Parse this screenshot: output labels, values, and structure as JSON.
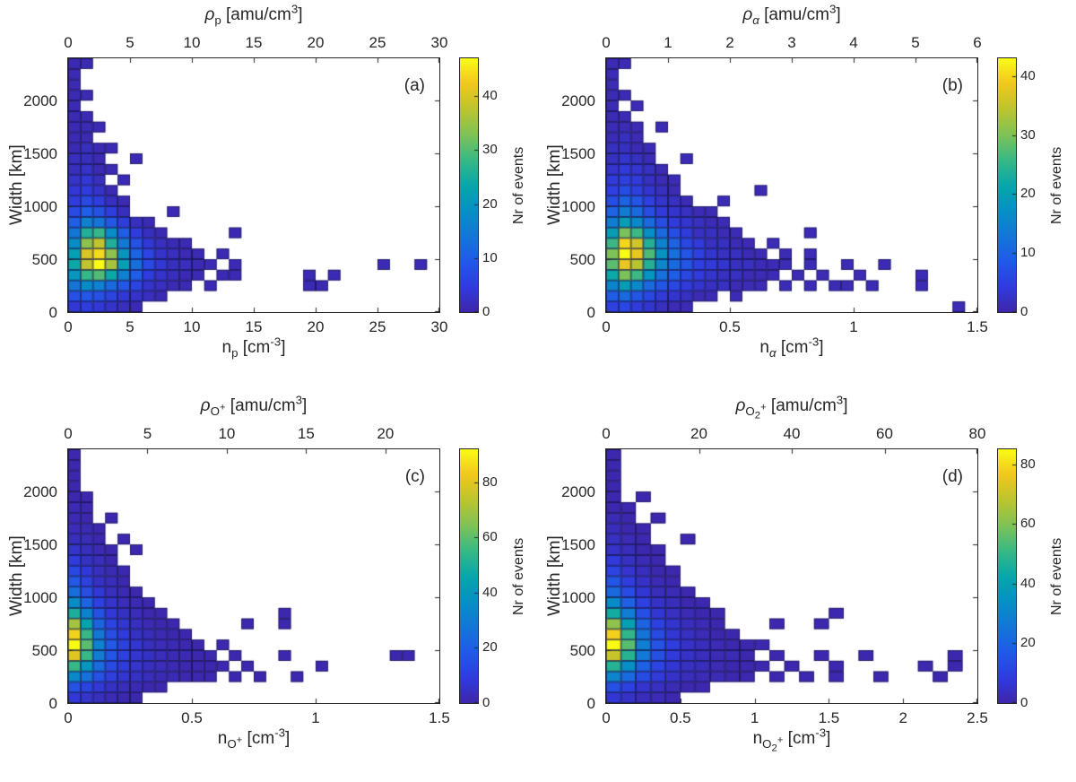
{
  "colormap": {
    "name": "parula",
    "stops": [
      [
        0.0,
        [
          62,
          38,
          168
        ]
      ],
      [
        0.1,
        [
          48,
          59,
          222
        ]
      ],
      [
        0.2,
        [
          33,
          90,
          232
        ]
      ],
      [
        0.3,
        [
          20,
          118,
          215
        ]
      ],
      [
        0.4,
        [
          6,
          144,
          197
        ]
      ],
      [
        0.5,
        [
          7,
          166,
          171
        ]
      ],
      [
        0.6,
        [
          56,
          184,
          133
        ]
      ],
      [
        0.7,
        [
          126,
          194,
          88
        ]
      ],
      [
        0.8,
        [
          188,
          196,
          48
        ]
      ],
      [
        0.9,
        [
          241,
          199,
          28
        ]
      ],
      [
        1.0,
        [
          249,
          251,
          20
        ]
      ]
    ]
  },
  "chart_data": [
    {
      "type": "heatmap",
      "letter": "(a)",
      "top_label_html": "<i>ρ</i><sub>p</sub> [amu/cm<sup>3</sup>]",
      "x_label_html": "n<sub>p</sub> [cm<sup>-3</sup>]",
      "y_label": "Width [km]",
      "colorbar_label": "Nr of events",
      "x_min": 0,
      "x_max": 30,
      "x_bin": 1,
      "x_ticks": [
        0,
        5,
        10,
        15,
        20,
        25,
        30
      ],
      "top_min": 0,
      "top_max": 30,
      "top_ticks": [
        0,
        5,
        10,
        15,
        20,
        25,
        30
      ],
      "y_min": 0,
      "y_max": 2400,
      "y_bin": 100,
      "y_ticks": [
        0,
        500,
        1000,
        1500,
        2000
      ],
      "c_max": 47,
      "c_ticks": [
        0,
        10,
        20,
        30,
        40
      ],
      "rows": [
        [
          4,
          5,
          4,
          3,
          2,
          1
        ],
        [
          8,
          9,
          8,
          6,
          4,
          3,
          2,
          1
        ],
        [
          14,
          18,
          16,
          12,
          9,
          6,
          3,
          2,
          1,
          1,
          0,
          1,
          0,
          0,
          0,
          0,
          0,
          0,
          0,
          1,
          1
        ],
        [
          20,
          28,
          30,
          24,
          16,
          10,
          5,
          3,
          2,
          1,
          1,
          0,
          1,
          1,
          0,
          0,
          0,
          0,
          0,
          1,
          0,
          1
        ],
        [
          24,
          38,
          47,
          36,
          22,
          13,
          7,
          4,
          2,
          2,
          1,
          1,
          0,
          1,
          0,
          0,
          0,
          0,
          0,
          0,
          0,
          0,
          0,
          0,
          0,
          1,
          0,
          0,
          1
        ],
        [
          22,
          40,
          44,
          34,
          20,
          11,
          6,
          3,
          2,
          1,
          1,
          0,
          1
        ],
        [
          18,
          34,
          38,
          26,
          15,
          8,
          4,
          2,
          1,
          1
        ],
        [
          14,
          26,
          28,
          18,
          10,
          5,
          2,
          1,
          0,
          0,
          0,
          0,
          0,
          1
        ],
        [
          10,
          16,
          14,
          9,
          5,
          2,
          1
        ],
        [
          7,
          10,
          8,
          5,
          2,
          0,
          0,
          0,
          1
        ],
        [
          5,
          7,
          5,
          2,
          1
        ],
        [
          4,
          5,
          3,
          1
        ],
        [
          3,
          4,
          2,
          0,
          1
        ],
        [
          2,
          3,
          1,
          1
        ],
        [
          2,
          2,
          1,
          0,
          0,
          1
        ],
        [
          1,
          2,
          1,
          1
        ],
        [
          1,
          1
        ],
        [
          1,
          1,
          1
        ],
        [
          1,
          1
        ],
        [
          1
        ],
        [
          1,
          1
        ],
        [
          1
        ],
        [
          1
        ],
        [
          1,
          1
        ]
      ]
    },
    {
      "type": "heatmap",
      "letter": "(b)",
      "top_label_html": "<i>ρ</i><sub><i>α</i></sub> [amu/cm<sup>3</sup>]",
      "x_label_html": "n<sub><i>α</i></sub> [cm<sup>-3</sup>]",
      "y_label": "Width [km]",
      "colorbar_label": "Nr of events",
      "x_min": 0,
      "x_max": 1.5,
      "x_bin": 0.05,
      "x_ticks": [
        0,
        0.5,
        1,
        1.5
      ],
      "top_min": 0,
      "top_max": 6,
      "top_ticks": [
        0,
        1,
        2,
        3,
        4,
        5,
        6
      ],
      "y_min": 0,
      "y_max": 2400,
      "y_bin": 100,
      "y_ticks": [
        0,
        500,
        1000,
        1500,
        2000
      ],
      "c_max": 43,
      "c_ticks": [
        0,
        10,
        20,
        30,
        40
      ],
      "rows": [
        [
          5,
          6,
          4,
          3,
          2,
          1,
          1,
          0,
          0,
          0,
          0,
          0,
          0,
          0,
          0,
          0,
          0,
          0,
          0,
          0,
          0,
          0,
          0,
          0,
          0,
          0,
          0,
          0,
          1
        ],
        [
          9,
          11,
          8,
          6,
          4,
          3,
          2,
          1,
          1,
          0,
          1
        ],
        [
          15,
          20,
          16,
          11,
          8,
          6,
          4,
          3,
          2,
          2,
          1,
          1,
          1,
          0,
          1,
          0,
          1,
          0,
          1,
          1,
          0,
          1,
          0,
          0,
          0,
          1
        ],
        [
          22,
          30,
          26,
          18,
          12,
          9,
          6,
          4,
          3,
          2,
          2,
          1,
          1,
          1,
          0,
          1,
          0,
          1,
          0,
          0,
          1,
          0,
          0,
          0,
          0,
          1
        ],
        [
          28,
          38,
          34,
          24,
          16,
          11,
          8,
          5,
          4,
          3,
          2,
          2,
          1,
          1,
          1,
          0,
          1,
          0,
          0,
          1,
          0,
          0,
          1
        ],
        [
          30,
          43,
          38,
          27,
          18,
          12,
          8,
          5,
          3,
          2,
          2,
          1,
          1,
          0,
          1,
          0,
          1
        ],
        [
          26,
          40,
          36,
          24,
          15,
          10,
          6,
          4,
          2,
          2,
          1,
          1,
          0,
          1
        ],
        [
          20,
          30,
          26,
          17,
          11,
          7,
          4,
          2,
          2,
          1,
          1,
          0,
          0,
          0,
          0,
          0,
          1
        ],
        [
          14,
          20,
          16,
          11,
          7,
          4,
          3,
          2,
          1,
          1
        ],
        [
          10,
          14,
          11,
          7,
          4,
          3,
          2,
          1,
          1
        ],
        [
          7,
          10,
          8,
          5,
          3,
          2,
          1,
          0,
          0,
          1
        ],
        [
          5,
          7,
          5,
          3,
          2,
          1,
          0,
          0,
          0,
          0,
          0,
          0,
          1
        ],
        [
          4,
          5,
          4,
          2,
          1,
          1
        ],
        [
          3,
          4,
          3,
          2,
          1
        ],
        [
          2,
          3,
          2,
          1,
          0,
          0,
          1
        ],
        [
          2,
          2,
          1,
          1
        ],
        [
          1,
          2,
          1
        ],
        [
          1,
          1,
          1,
          0,
          1
        ],
        [
          1,
          1
        ],
        [
          1,
          0,
          1
        ],
        [
          1,
          1
        ],
        [
          1
        ],
        [
          1
        ],
        [
          1,
          1
        ]
      ]
    },
    {
      "type": "heatmap",
      "letter": "(c)",
      "top_label_html": "<i>ρ</i><sub>O<sup>+</sup></sub> [amu/cm<sup>3</sup>]",
      "x_label_html": "n<sub>O<sup>+</sup></sub> [cm<sup>-3</sup>]",
      "y_label": "Width [km]",
      "colorbar_label": "Nr of events",
      "x_min": 0,
      "x_max": 1.5,
      "x_bin": 0.05,
      "x_ticks": [
        0,
        0.5,
        1,
        1.5
      ],
      "top_min": 0,
      "top_max": 23.4,
      "top_ticks": [
        0,
        5,
        10,
        15,
        20
      ],
      "y_min": 0,
      "y_max": 2400,
      "y_bin": 100,
      "y_ticks": [
        0,
        500,
        1000,
        1500,
        2000
      ],
      "c_max": 92,
      "c_ticks": [
        0,
        20,
        40,
        60,
        80
      ],
      "rows": [
        [
          8,
          6,
          4,
          2,
          1,
          1
        ],
        [
          16,
          12,
          8,
          5,
          3,
          2,
          1,
          1
        ],
        [
          34,
          26,
          16,
          10,
          7,
          5,
          3,
          2,
          2,
          1,
          1,
          1,
          0,
          1,
          0,
          1,
          0,
          0,
          1
        ],
        [
          55,
          40,
          24,
          14,
          9,
          6,
          4,
          3,
          2,
          1,
          1,
          1,
          1,
          0,
          1,
          0,
          0,
          0,
          0,
          0,
          1
        ],
        [
          80,
          55,
          30,
          17,
          11,
          7,
          5,
          3,
          2,
          2,
          1,
          1,
          0,
          1,
          0,
          0,
          0,
          1,
          0,
          0,
          0,
          0,
          0,
          0,
          0,
          0,
          1,
          1
        ],
        [
          92,
          60,
          32,
          18,
          11,
          7,
          4,
          3,
          2,
          1,
          1,
          0,
          1
        ],
        [
          85,
          55,
          28,
          15,
          9,
          5,
          3,
          2,
          1,
          1
        ],
        [
          70,
          45,
          22,
          12,
          7,
          4,
          2,
          1,
          1,
          0,
          0,
          0,
          0,
          0,
          1,
          0,
          0,
          1
        ],
        [
          50,
          32,
          16,
          8,
          5,
          3,
          1,
          1,
          0,
          0,
          0,
          0,
          0,
          0,
          0,
          0,
          0,
          1
        ],
        [
          36,
          22,
          11,
          6,
          3,
          2,
          1
        ],
        [
          25,
          15,
          8,
          4,
          2,
          1
        ],
        [
          18,
          11,
          5,
          3,
          1
        ],
        [
          13,
          8,
          4,
          2,
          1
        ],
        [
          9,
          5,
          3,
          1
        ],
        [
          6,
          4,
          2,
          1,
          0,
          1
        ],
        [
          4,
          3,
          1,
          0,
          1
        ],
        [
          3,
          2,
          1
        ],
        [
          2,
          1,
          0,
          1
        ],
        [
          2,
          1
        ],
        [
          1,
          1
        ],
        [
          1
        ],
        [
          1
        ],
        [
          1
        ],
        [
          1
        ]
      ]
    },
    {
      "type": "heatmap",
      "letter": "(d)",
      "top_label_html": "<i>ρ</i><sub>O<sub>2</sub><sup>+</sup></sub> [amu/cm<sup>3</sup>]",
      "x_label_html": "n<sub>O<sub>2</sub><sup>+</sup></sub> [cm<sup>-3</sup>]",
      "y_label": "Width [km]",
      "colorbar_label": "Nr of events",
      "x_min": 0,
      "x_max": 2.5,
      "x_bin": 0.1,
      "x_ticks": [
        0,
        0.5,
        1,
        1.5,
        2,
        2.5
      ],
      "top_min": 0,
      "top_max": 80,
      "top_ticks": [
        0,
        20,
        40,
        60,
        80
      ],
      "y_min": 0,
      "y_max": 2400,
      "y_bin": 100,
      "y_ticks": [
        0,
        500,
        1000,
        1500,
        2000
      ],
      "c_max": 85,
      "c_ticks": [
        0,
        20,
        40,
        60,
        80
      ],
      "rows": [
        [
          7,
          5,
          3,
          2,
          1
        ],
        [
          14,
          10,
          6,
          4,
          2,
          1,
          1
        ],
        [
          30,
          22,
          13,
          8,
          5,
          3,
          2,
          2,
          1,
          1,
          0,
          1,
          0,
          1,
          0,
          1,
          0,
          0,
          1,
          0,
          0,
          0,
          1
        ],
        [
          48,
          34,
          19,
          11,
          7,
          4,
          3,
          2,
          1,
          1,
          1,
          0,
          1,
          0,
          0,
          1,
          0,
          0,
          0,
          0,
          0,
          1,
          0,
          1
        ],
        [
          70,
          48,
          26,
          14,
          8,
          5,
          3,
          2,
          2,
          1,
          0,
          1,
          0,
          0,
          1,
          0,
          0,
          1,
          0,
          0,
          0,
          0,
          0,
          1
        ],
        [
          85,
          55,
          28,
          15,
          9,
          5,
          3,
          2,
          1,
          1,
          1
        ],
        [
          78,
          50,
          25,
          13,
          7,
          4,
          2,
          1,
          1
        ],
        [
          62,
          40,
          20,
          10,
          6,
          3,
          2,
          1,
          0,
          0,
          0,
          1,
          0,
          0,
          1
        ],
        [
          45,
          28,
          14,
          7,
          4,
          2,
          1,
          1,
          0,
          0,
          0,
          0,
          0,
          0,
          0,
          1
        ],
        [
          32,
          19,
          10,
          5,
          3,
          1,
          1
        ],
        [
          22,
          13,
          7,
          3,
          2,
          1
        ],
        [
          16,
          9,
          5,
          2,
          1
        ],
        [
          11,
          6,
          3,
          1,
          1
        ],
        [
          8,
          4,
          2,
          1
        ],
        [
          5,
          3,
          1,
          1
        ],
        [
          4,
          2,
          1,
          0,
          0,
          1
        ],
        [
          3,
          1,
          1
        ],
        [
          2,
          1,
          0,
          1
        ],
        [
          1,
          1
        ],
        [
          1,
          0,
          1
        ],
        [
          1
        ],
        [
          1
        ],
        [
          1
        ],
        [
          1
        ]
      ]
    }
  ]
}
